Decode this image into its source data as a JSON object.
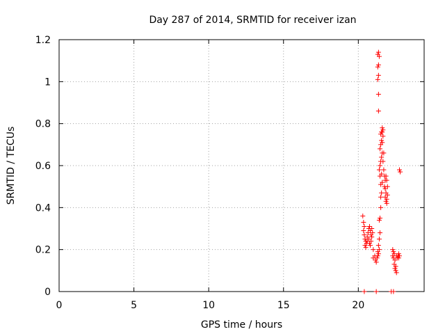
{
  "chart_data": {
    "type": "scatter",
    "title": "Day 287 of 2014, SRMTID for receiver izan",
    "xlabel": "GPS time / hours",
    "ylabel": "SRMTID / TECUs",
    "xlim": [
      0,
      24.4
    ],
    "ylim": [
      0,
      1.2
    ],
    "xticks": [
      "0",
      "5",
      "10",
      "15",
      "20"
    ],
    "yticks": [
      "0",
      "0.2",
      "0.4",
      "0.6",
      "0.8",
      "1",
      "1.2"
    ],
    "grid": true,
    "marker": "plus",
    "color": "#ff0000",
    "series": [
      {
        "points": [
          [
            20.3,
            0.36
          ],
          [
            20.35,
            0.33
          ],
          [
            20.4,
            0.31
          ],
          [
            20.35,
            0.29
          ],
          [
            20.4,
            0.27
          ],
          [
            20.45,
            0.25
          ],
          [
            20.5,
            0.24
          ],
          [
            20.45,
            0.22
          ],
          [
            20.5,
            0.21
          ],
          [
            20.55,
            0.23
          ],
          [
            20.6,
            0.26
          ],
          [
            20.65,
            0.28
          ],
          [
            20.7,
            0.3
          ],
          [
            20.75,
            0.31
          ],
          [
            20.8,
            0.29
          ],
          [
            20.85,
            0.27
          ],
          [
            20.9,
            0.3
          ],
          [
            20.95,
            0.28
          ],
          [
            20.7,
            0.25
          ],
          [
            20.75,
            0.23
          ],
          [
            20.8,
            0.22
          ],
          [
            20.85,
            0.24
          ],
          [
            20.9,
            0.26
          ],
          [
            20.6,
            0.24
          ],
          [
            21.0,
            0.2
          ],
          [
            21.0,
            0.16
          ],
          [
            21.1,
            0.17
          ],
          [
            21.15,
            0.15
          ],
          [
            21.2,
            0.14
          ],
          [
            21.25,
            0.16
          ],
          [
            21.3,
            0.17
          ],
          [
            21.35,
            0.18
          ],
          [
            21.3,
            0.19
          ],
          [
            21.4,
            0.2
          ],
          [
            21.35,
            0.22
          ],
          [
            21.4,
            0.25
          ],
          [
            21.45,
            0.28
          ],
          [
            21.4,
            0.34
          ],
          [
            21.45,
            0.35
          ],
          [
            21.5,
            0.4
          ],
          [
            21.5,
            0.45
          ],
          [
            21.55,
            0.47
          ],
          [
            21.5,
            0.51
          ],
          [
            21.45,
            0.55
          ],
          [
            21.55,
            0.56
          ],
          [
            21.6,
            0.52
          ],
          [
            21.4,
            0.58
          ],
          [
            21.45,
            0.6
          ],
          [
            21.5,
            0.62
          ],
          [
            21.55,
            0.64
          ],
          [
            21.6,
            0.66
          ],
          [
            21.45,
            0.68
          ],
          [
            21.5,
            0.7
          ],
          [
            21.55,
            0.72
          ],
          [
            21.6,
            0.71
          ],
          [
            21.65,
            0.74
          ],
          [
            21.6,
            0.76
          ],
          [
            21.55,
            0.76
          ],
          [
            21.5,
            0.75
          ],
          [
            21.65,
            0.77
          ],
          [
            21.6,
            0.78
          ],
          [
            21.7,
            0.66
          ],
          [
            21.65,
            0.62
          ],
          [
            21.7,
            0.58
          ],
          [
            21.75,
            0.55
          ],
          [
            21.8,
            0.53
          ],
          [
            21.75,
            0.5
          ],
          [
            21.8,
            0.49
          ],
          [
            21.85,
            0.47
          ],
          [
            21.8,
            0.45
          ],
          [
            21.9,
            0.44
          ],
          [
            21.85,
            0.43
          ],
          [
            21.9,
            0.42
          ],
          [
            21.95,
            0.46
          ],
          [
            21.95,
            0.5
          ],
          [
            21.9,
            0.53
          ],
          [
            21.85,
            0.55
          ],
          [
            21.35,
            0.86
          ],
          [
            21.35,
            0.94
          ],
          [
            21.3,
            1.01
          ],
          [
            21.35,
            1.03
          ],
          [
            21.3,
            1.07
          ],
          [
            21.35,
            1.08
          ],
          [
            21.3,
            1.13
          ],
          [
            21.35,
            1.14
          ],
          [
            21.4,
            1.12
          ],
          [
            22.3,
            0.2
          ],
          [
            22.35,
            0.19
          ],
          [
            22.3,
            0.17
          ],
          [
            22.4,
            0.18
          ],
          [
            22.35,
            0.16
          ],
          [
            22.45,
            0.15
          ],
          [
            22.4,
            0.13
          ],
          [
            22.5,
            0.12
          ],
          [
            22.45,
            0.11
          ],
          [
            22.5,
            0.1
          ],
          [
            22.55,
            0.09
          ],
          [
            22.6,
            0.16
          ],
          [
            22.65,
            0.17
          ],
          [
            22.7,
            0.18
          ],
          [
            22.55,
            0.17
          ],
          [
            22.7,
            0.16
          ],
          [
            22.75,
            0.17
          ],
          [
            22.75,
            0.58
          ],
          [
            22.8,
            0.57
          ],
          [
            20.4,
            0.0
          ],
          [
            21.2,
            0.0
          ],
          [
            22.2,
            0.0
          ],
          [
            22.35,
            0.0
          ]
        ]
      }
    ]
  }
}
